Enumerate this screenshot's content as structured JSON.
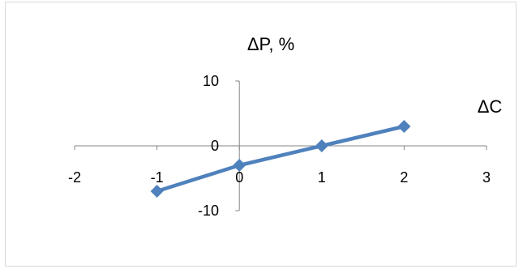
{
  "chart_data": {
    "type": "line",
    "title": "",
    "xlabel": "ΔC",
    "ylabel": "ΔP, %",
    "xlim": [
      -2,
      3
    ],
    "ylim": [
      -10,
      10
    ],
    "x_ticks": [
      "-2",
      "-1",
      "0",
      "1",
      "2",
      "3"
    ],
    "y_ticks": [
      "10",
      "0",
      "-10"
    ],
    "grid": false,
    "legend": "none",
    "series": [
      {
        "color": "#4f81bd",
        "marker": "diamond",
        "points": [
          {
            "x": -1,
            "y": -7
          },
          {
            "x": 0,
            "y": -3
          },
          {
            "x": 1,
            "y": 0
          },
          {
            "x": 2,
            "y": 3
          }
        ]
      }
    ]
  }
}
